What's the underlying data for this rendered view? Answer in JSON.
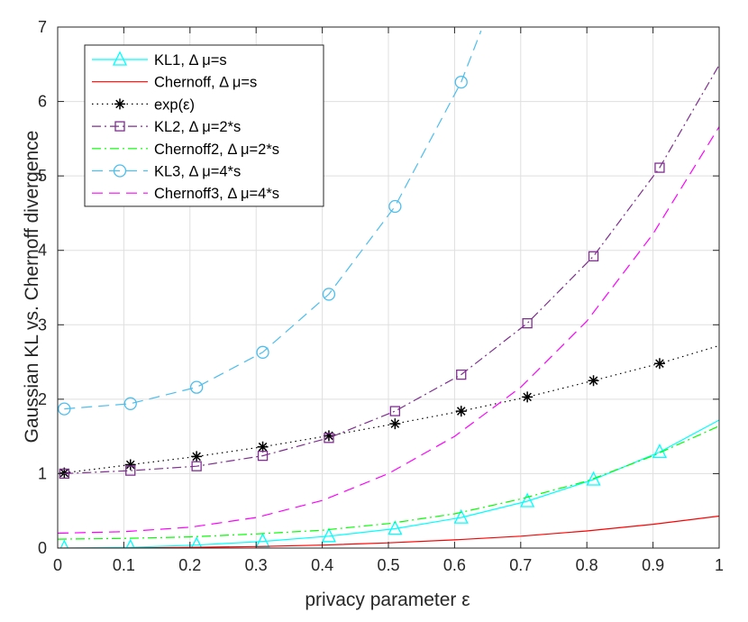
{
  "chart_data": {
    "type": "line",
    "xlabel": "privacy parameter ε",
    "ylabel": "Gaussian KL vs. Chernoff divergence",
    "xlim": [
      0,
      1
    ],
    "ylim": [
      0,
      7
    ],
    "xticks": [
      "0",
      "0.1",
      "0.2",
      "0.3",
      "0.4",
      "0.5",
      "0.6",
      "0.7",
      "0.8",
      "0.9",
      "1"
    ],
    "yticks": [
      "0",
      "1",
      "2",
      "3",
      "4",
      "5",
      "6",
      "7"
    ],
    "grid": true,
    "legend_position": "top-left",
    "series": [
      {
        "name": "KL1, Δ μ=s",
        "color": "#00ffff",
        "line": "solid",
        "marker": "triangle",
        "x": [
          0.01,
          0.11,
          0.21,
          0.31,
          0.41,
          0.51,
          0.61,
          0.71,
          0.81,
          0.91,
          1.0
        ],
        "y": [
          0.0,
          0.01,
          0.04,
          0.09,
          0.16,
          0.26,
          0.41,
          0.63,
          0.92,
          1.29,
          1.72
        ]
      },
      {
        "name": "Chernoff, Δ μ=s",
        "color": "#ff0000",
        "line": "solid",
        "marker": "none",
        "x": [
          0.0,
          0.1,
          0.2,
          0.3,
          0.4,
          0.5,
          0.6,
          0.7,
          0.8,
          0.9,
          1.0
        ],
        "y": [
          0.0,
          0.0,
          0.01,
          0.02,
          0.04,
          0.07,
          0.11,
          0.16,
          0.23,
          0.32,
          0.43
        ]
      },
      {
        "name": "exp(ε)",
        "color": "#000000",
        "line": "dotted",
        "marker": "star",
        "x": [
          0.01,
          0.11,
          0.21,
          0.31,
          0.41,
          0.51,
          0.61,
          0.71,
          0.81,
          0.91,
          1.0
        ],
        "y": [
          1.01,
          1.12,
          1.23,
          1.36,
          1.51,
          1.67,
          1.84,
          2.03,
          2.25,
          2.48,
          2.72
        ]
      },
      {
        "name": "KL2, Δ μ=2*s",
        "color": "#7e2f8e",
        "line": "dashdot",
        "marker": "square",
        "x": [
          0.01,
          0.11,
          0.21,
          0.31,
          0.41,
          0.51,
          0.61,
          0.71,
          0.81,
          0.91,
          1.0
        ],
        "y": [
          1.0,
          1.04,
          1.1,
          1.24,
          1.48,
          1.84,
          2.33,
          3.02,
          3.92,
          5.11,
          6.49
        ]
      },
      {
        "name": "Chernoff2, Δ μ=2*s",
        "color": "#00ff00",
        "line": "dashdot",
        "marker": "none",
        "x": [
          0.0,
          0.1,
          0.2,
          0.3,
          0.4,
          0.5,
          0.6,
          0.7,
          0.8,
          0.9,
          1.0
        ],
        "y": [
          0.12,
          0.13,
          0.15,
          0.19,
          0.24,
          0.33,
          0.46,
          0.66,
          0.9,
          1.24,
          1.64
        ]
      },
      {
        "name": "KL3, Δ μ=4*s",
        "color": "#4dbeee",
        "line": "dashed",
        "marker": "circle",
        "x": [
          0.01,
          0.11,
          0.21,
          0.31,
          0.41,
          0.51,
          0.61,
          0.64
        ],
        "y": [
          1.87,
          1.94,
          2.16,
          2.63,
          3.41,
          4.59,
          6.26,
          6.95
        ]
      },
      {
        "name": "Chernoff3, Δ μ=4*s",
        "color": "#ff00ff",
        "line": "dashed",
        "marker": "none",
        "x": [
          0.0,
          0.1,
          0.2,
          0.3,
          0.4,
          0.5,
          0.6,
          0.7,
          0.8,
          0.9,
          1.0
        ],
        "y": [
          0.2,
          0.22,
          0.28,
          0.41,
          0.64,
          1.0,
          1.5,
          2.16,
          3.05,
          4.22,
          5.66
        ]
      }
    ]
  }
}
